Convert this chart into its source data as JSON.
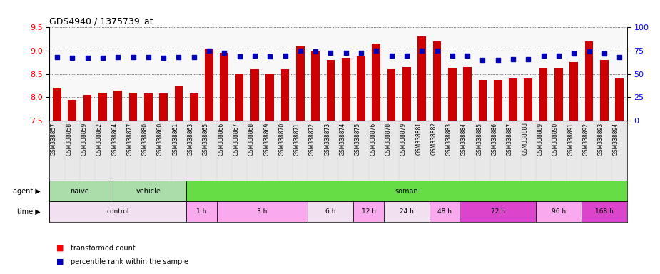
{
  "title": "GDS4940 / 1375739_at",
  "samples": [
    "GSM338857",
    "GSM338858",
    "GSM338859",
    "GSM338862",
    "GSM338864",
    "GSM338877",
    "GSM338880",
    "GSM338860",
    "GSM338861",
    "GSM338863",
    "GSM338865",
    "GSM338866",
    "GSM338867",
    "GSM338868",
    "GSM338869",
    "GSM338870",
    "GSM338871",
    "GSM338872",
    "GSM338873",
    "GSM338874",
    "GSM338875",
    "GSM338876",
    "GSM338878",
    "GSM338879",
    "GSM338881",
    "GSM338882",
    "GSM338883",
    "GSM338884",
    "GSM338885",
    "GSM338886",
    "GSM338887",
    "GSM338888",
    "GSM338889",
    "GSM338890",
    "GSM338891",
    "GSM338892",
    "GSM338893",
    "GSM338894"
  ],
  "bar_values": [
    8.2,
    7.95,
    8.05,
    8.1,
    8.15,
    8.1,
    8.08,
    8.08,
    8.25,
    8.08,
    9.05,
    8.95,
    8.5,
    8.6,
    8.5,
    8.6,
    9.1,
    8.98,
    8.8,
    8.85,
    8.88,
    9.15,
    8.6,
    8.65,
    9.3,
    9.2,
    8.63,
    8.65,
    8.38,
    8.38,
    8.4,
    8.4,
    8.62,
    8.62,
    8.75,
    9.2,
    8.8,
    8.4
  ],
  "percentile_values": [
    68,
    67,
    67,
    67,
    68,
    68,
    68,
    67,
    68,
    68,
    75,
    73,
    69,
    70,
    69,
    70,
    75,
    74,
    73,
    73,
    73,
    75,
    70,
    70,
    75,
    75,
    70,
    70,
    65,
    65,
    66,
    66,
    70,
    70,
    72,
    74,
    72,
    68
  ],
  "ylim_left": [
    7.5,
    9.5
  ],
  "ylim_right": [
    0,
    100
  ],
  "yticks_left": [
    7.5,
    8.0,
    8.5,
    9.0,
    9.5
  ],
  "yticks_right": [
    0,
    25,
    50,
    75,
    100
  ],
  "bar_color": "#cc0000",
  "dot_color": "#0000bb",
  "agent_groups": [
    {
      "label": "naive",
      "start": 0,
      "end": 4,
      "color": "#aaddaa"
    },
    {
      "label": "vehicle",
      "start": 4,
      "end": 9,
      "color": "#aaddaa"
    },
    {
      "label": "soman",
      "start": 9,
      "end": 38,
      "color": "#66dd44"
    }
  ],
  "time_groups": [
    {
      "label": "control",
      "start": 0,
      "end": 9,
      "color": "#f0e8f0"
    },
    {
      "label": "1 h",
      "start": 9,
      "end": 11,
      "color": "#f9ccf9"
    },
    {
      "label": "3 h",
      "start": 11,
      "end": 17,
      "color": "#f9ccf9"
    },
    {
      "label": "6 h",
      "start": 17,
      "end": 20,
      "color": "#f0e8f0"
    },
    {
      "label": "12 h",
      "start": 20,
      "end": 22,
      "color": "#f9ccf9"
    },
    {
      "label": "24 h",
      "start": 22,
      "end": 25,
      "color": "#f0e8f0"
    },
    {
      "label": "48 h",
      "start": 25,
      "end": 27,
      "color": "#f9ccf9"
    },
    {
      "label": "72 h",
      "start": 27,
      "end": 32,
      "color": "#dd55dd"
    },
    {
      "label": "96 h",
      "start": 32,
      "end": 35,
      "color": "#f9ccf9"
    },
    {
      "label": "168 h",
      "start": 35,
      "end": 38,
      "color": "#dd55dd"
    }
  ],
  "legend_bar_label": "transformed count",
  "legend_dot_label": "percentile rank within the sample",
  "agent_row_label": "agent",
  "time_row_label": "time",
  "chart_bg": "#f8f8f8",
  "tick_label_bg": "#e8e8e8"
}
